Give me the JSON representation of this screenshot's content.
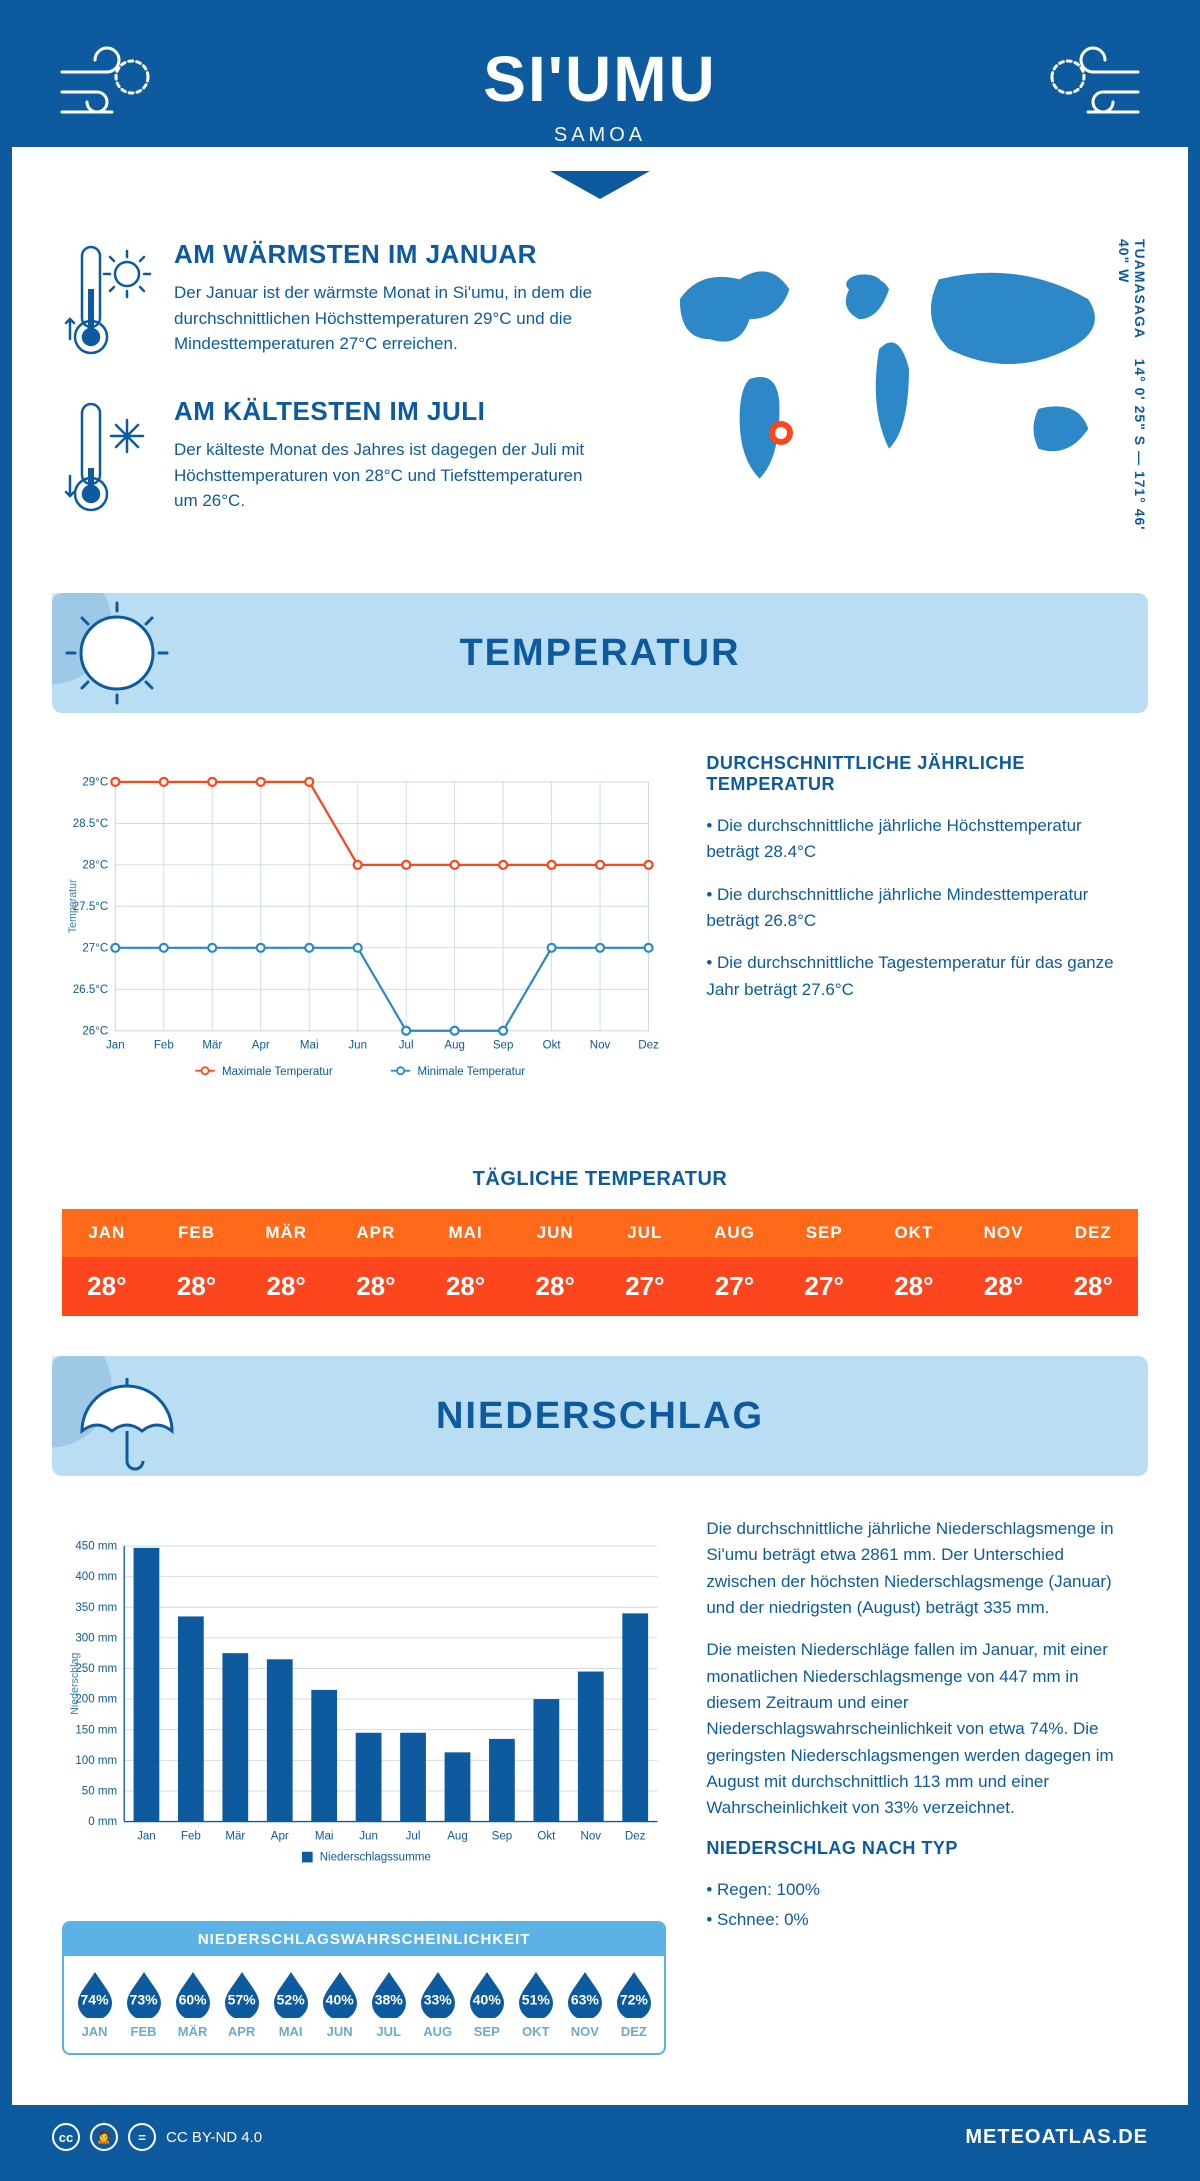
{
  "colors": {
    "brand": "#0d5a9e",
    "brand_mid": "#2c88c6",
    "brand_light": "#5bb2e5",
    "banner": "#b9def3",
    "grid": "#c9dae8",
    "max_line": "#fd461d",
    "min_line": "#2c88c6",
    "bar": "#0d5a9e",
    "white": "#ffffff"
  },
  "header": {
    "title": "SI'UMU",
    "subtitle": "SAMOA"
  },
  "coords": {
    "lat": "14° 0' 25\" S",
    "lon": "171° 46' 40\" W",
    "region": "TUAMASAGA"
  },
  "facts": {
    "warm": {
      "title": "AM WÄRMSTEN IM JANUAR",
      "text": "Der Januar ist der wärmste Monat in Si'umu, in dem die durchschnittlichen Höchsttemperaturen 29°C und die Mindesttemperaturen 27°C erreichen."
    },
    "cold": {
      "title": "AM KÄLTESTEN IM JULI",
      "text": "Der kälteste Monat des Jahres ist dagegen der Juli mit Höchsttemperaturen von 28°C und Tiefsttemperaturen um 26°C."
    }
  },
  "temp_section": {
    "title": "TEMPERATUR",
    "chart": {
      "months": [
        "Jan",
        "Feb",
        "Mär",
        "Apr",
        "Mai",
        "Jun",
        "Jul",
        "Aug",
        "Sep",
        "Okt",
        "Nov",
        "Dez"
      ],
      "max": [
        29,
        29,
        29,
        29,
        29,
        28,
        28,
        28,
        28,
        28,
        28,
        28
      ],
      "min": [
        27,
        27,
        27,
        27,
        27,
        27,
        26,
        26,
        26,
        27,
        27,
        27
      ],
      "ylim": [
        26,
        29
      ],
      "ytick_step": 0.5,
      "ytitle": "Temperatur",
      "legend_max": "Maximale Temperatur",
      "legend_min": "Minimale Temperatur"
    },
    "summary": {
      "title": "DURCHSCHNITTLICHE JÄHRLICHE TEMPERATUR",
      "items": [
        "• Die durchschnittliche jährliche Höchsttemperatur beträgt 28.4°C",
        "• Die durchschnittliche jährliche Mindesttemperatur beträgt 26.8°C",
        "• Die durchschnittliche Tagestemperatur für das ganze Jahr beträgt 27.6°C"
      ]
    },
    "daily": {
      "title": "TÄGLICHE TEMPERATUR",
      "months": [
        "JAN",
        "FEB",
        "MÄR",
        "APR",
        "MAI",
        "JUN",
        "JUL",
        "AUG",
        "SEP",
        "OKT",
        "NOV",
        "DEZ"
      ],
      "values": [
        "28°",
        "28°",
        "28°",
        "28°",
        "28°",
        "28°",
        "27°",
        "27°",
        "27°",
        "28°",
        "28°",
        "28°"
      ],
      "header_bg": "#ff6a1a",
      "value_bg": "#fd461d"
    }
  },
  "precip_section": {
    "title": "NIEDERSCHLAG",
    "chart": {
      "months": [
        "Jan",
        "Feb",
        "Mär",
        "Apr",
        "Mai",
        "Jun",
        "Jul",
        "Aug",
        "Sep",
        "Okt",
        "Nov",
        "Dez"
      ],
      "values": [
        447,
        335,
        275,
        265,
        215,
        145,
        145,
        113,
        135,
        200,
        245,
        340
      ],
      "ylim": [
        0,
        450
      ],
      "ytick_step": 50,
      "ytitle": "Niederschlag",
      "legend": "Niederschlagssumme"
    },
    "summary": {
      "para1": "Die durchschnittliche jährliche Niederschlagsmenge in Si'umu beträgt etwa 2861 mm. Der Unterschied zwischen der höchsten Niederschlagsmenge (Januar) und der niedrigsten (August) beträgt 335 mm.",
      "para2": "Die meisten Niederschläge fallen im Januar, mit einer monatlichen Niederschlagsmenge von 447 mm in diesem Zeitraum und einer Niederschlagswahrscheinlichkeit von etwa 74%. Die geringsten Niederschlagsmengen werden dagegen im August mit durchschnittlich 113 mm und einer Wahrscheinlichkeit von 33% verzeichnet.",
      "type_title": "NIEDERSCHLAG NACH TYP",
      "type_items": [
        "• Regen: 100%",
        "• Schnee: 0%"
      ]
    },
    "prob": {
      "title": "NIEDERSCHLAGSWAHRSCHEINLICHKEIT",
      "months": [
        "JAN",
        "FEB",
        "MÄR",
        "APR",
        "MAI",
        "JUN",
        "JUL",
        "AUG",
        "SEP",
        "OKT",
        "NOV",
        "DEZ"
      ],
      "values": [
        74,
        73,
        60,
        57,
        52,
        40,
        38,
        33,
        40,
        51,
        63,
        72
      ]
    }
  },
  "footer": {
    "license": "CC BY-ND 4.0",
    "url": "METEOATLAS.DE"
  }
}
